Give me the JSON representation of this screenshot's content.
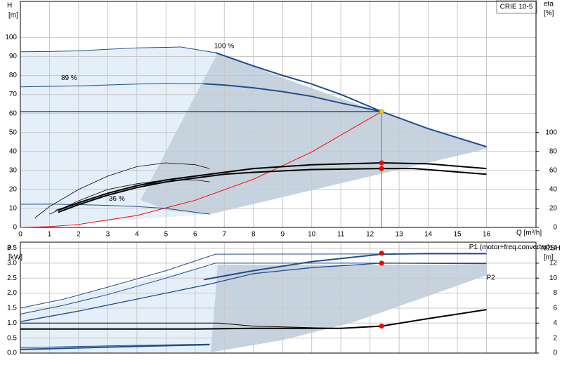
{
  "chart_data": [
    {
      "type": "line",
      "title": "CRIE 10-5",
      "ylabel": "H",
      "yunit": "[m]",
      "y2label": "eta",
      "y2unit": "[%]",
      "xlabel": "Q [m³/h]",
      "xlim": [
        0,
        17.7
      ],
      "xticks": [
        0,
        1,
        2,
        3,
        4,
        5,
        6,
        7,
        8,
        9,
        10,
        11,
        12,
        13,
        14,
        15,
        16
      ],
      "xtick_labels": true,
      "ylim": [
        0,
        119
      ],
      "yticks": [
        0,
        10,
        20,
        30,
        40,
        50,
        60,
        70,
        80,
        90,
        100
      ],
      "y2lim": [
        0,
        238
      ],
      "y2ticks": [
        0,
        20,
        40,
        60,
        80,
        100
      ],
      "grid": true,
      "duty_lines": true,
      "series": [
        {
          "name": "100 %",
          "color": "#1f4e8c",
          "width": 1,
          "x": [
            0,
            1,
            2,
            3,
            4,
            5,
            5.5,
            6.7
          ],
          "values": [
            92.5,
            92.6,
            93,
            93.8,
            94.5,
            94.8,
            95,
            92
          ]
        },
        {
          "color": "#1f4e8c",
          "width": 2,
          "x": [
            6.7,
            8,
            9,
            10,
            11,
            12.4,
            14,
            16
          ],
          "values": [
            92,
            85,
            80,
            75.5,
            70,
            61,
            52,
            42.5
          ]
        },
        {
          "name": "89 %",
          "color": "#1f4e8c",
          "width": 1,
          "x": [
            0,
            2,
            4,
            5,
            6.3
          ],
          "values": [
            74,
            74.5,
            75.5,
            75.8,
            75.6
          ]
        },
        {
          "color": "#1f4e8c",
          "width": 2,
          "x": [
            6.3,
            7,
            8,
            9,
            10,
            11,
            12.4
          ],
          "values": [
            75.6,
            75,
            73.5,
            71.5,
            69,
            65.5,
            61
          ]
        },
        {
          "name": "36 %",
          "color": "#1f4e8c",
          "width": 1,
          "x": [
            0,
            1,
            2,
            3,
            4,
            5,
            6.5
          ],
          "values": [
            12.2,
            12.3,
            12,
            11.6,
            11,
            10,
            7
          ]
        },
        {
          "color": "#ff0000",
          "width": 1,
          "x": [
            0,
            1,
            2,
            4,
            6,
            8,
            10,
            12.4
          ],
          "values": [
            0,
            0.4,
            1.6,
            6.3,
            14.3,
            25.4,
            39.7,
            61
          ]
        },
        {
          "color": "#000000",
          "width": 2,
          "axis": "y2",
          "x": [
            1.3,
            2,
            3,
            4,
            5,
            6,
            7,
            8,
            10,
            12.4,
            14,
            16
          ],
          "values": [
            18,
            26,
            36,
            44,
            50,
            54,
            58,
            62,
            66,
            68,
            67,
            62
          ]
        },
        {
          "color": "#000000",
          "width": 2,
          "axis": "y2",
          "x": [
            1.3,
            2,
            3,
            4,
            5,
            6,
            7,
            8,
            10,
            12.4,
            13.5,
            16
          ],
          "values": [
            16,
            24,
            34,
            42,
            48,
            52,
            56,
            58,
            61,
            62,
            62,
            56
          ]
        },
        {
          "color": "#000000",
          "width": 0.8,
          "axis": "y2",
          "x": [
            0.5,
            1,
            2,
            3,
            4,
            5,
            6,
            6.5
          ],
          "values": [
            10,
            22,
            40,
            54,
            64,
            68,
            66,
            62
          ]
        },
        {
          "color": "#000000",
          "width": 0.8,
          "axis": "y2",
          "x": [
            1,
            2,
            3,
            4,
            5,
            6,
            6.5
          ],
          "values": [
            14,
            28,
            40,
            46,
            50,
            50,
            48
          ]
        },
        {
          "color": "#000000",
          "width": 0.8,
          "axis": "y2",
          "x": [
            1.2,
            2,
            3,
            4,
            5,
            6,
            6.5
          ],
          "values": [
            18,
            26,
            36,
            44,
            48,
            52,
            54
          ]
        }
      ],
      "points": [
        {
          "x": 12.4,
          "y": 61,
          "color": "#f5c400"
        },
        {
          "x": 12.4,
          "y": 68,
          "axis": "y2",
          "color": "#ff0000"
        },
        {
          "x": 12.4,
          "y": 62,
          "axis": "y2",
          "color": "#ff0000"
        }
      ]
    },
    {
      "type": "line",
      "ylabel": "P",
      "yunit": "[kW]",
      "y2label": "NPSH",
      "y2unit": "[m]",
      "xlim": [
        0,
        17.7
      ],
      "xticks": [
        0,
        1,
        2,
        3,
        4,
        5,
        6,
        7,
        8,
        9,
        10,
        11,
        12,
        13,
        14,
        15,
        16
      ],
      "xtick_labels": false,
      "ylim": [
        0,
        3.7
      ],
      "yticks": [
        {
          "value": 0,
          "label": "0.0"
        },
        0.5,
        {
          "value": 1,
          "label": "1.0"
        },
        1.5,
        {
          "value": 2,
          "label": "2.0"
        },
        2.5,
        {
          "value": 3,
          "label": "3.0"
        },
        3.5
      ],
      "y2lim": [
        0,
        14.8
      ],
      "y2ticks": [
        0,
        2,
        4,
        6,
        8,
        10,
        12,
        14
      ],
      "grid": true,
      "duty_lines": false,
      "series": [
        {
          "color": "#1f4e8c",
          "width": 1,
          "x": [
            0,
            1.5,
            3,
            5,
            6.7,
            16
          ],
          "values": [
            1.5,
            1.8,
            2.2,
            2.75,
            3.3,
            3.31
          ]
        },
        {
          "name": "P1 (motor+freq.converter)",
          "color": "#1f4e8c",
          "width": 2,
          "x": [
            6.3,
            8,
            10,
            12.4,
            14,
            16
          ],
          "values": [
            2.45,
            2.75,
            3.05,
            3.3,
            3.32,
            3.32
          ]
        },
        {
          "color": "#1f4e8c",
          "width": 1,
          "x": [
            0,
            1.5,
            3,
            5,
            6.7,
            12.4,
            16
          ],
          "values": [
            1.3,
            1.6,
            1.95,
            2.5,
            3.0,
            3.0,
            3.0
          ]
        },
        {
          "name": "P2",
          "color": "#1f4e8c",
          "width": 1.3,
          "x": [
            0,
            2,
            4,
            6.5,
            8,
            10,
            12.4,
            16
          ],
          "values": [
            1.05,
            1.4,
            1.8,
            2.3,
            2.65,
            2.85,
            3.0,
            2.98
          ]
        },
        {
          "color": "#000000",
          "width": 1,
          "x": [
            0,
            6.8,
            8,
            11
          ],
          "values": [
            1.0,
            1.0,
            0.9,
            0.82
          ]
        },
        {
          "color": "#000000",
          "width": 2,
          "axis": "y2",
          "x": [
            0,
            6,
            8,
            11,
            12.4,
            14,
            16
          ],
          "values": [
            3.2,
            3.2,
            3.3,
            3.3,
            3.6,
            4.6,
            5.8
          ]
        },
        {
          "color": "#1f4e8c",
          "width": 2,
          "x": [
            0,
            3,
            6.5
          ],
          "values": [
            0.12,
            0.2,
            0.28
          ]
        },
        {
          "color": "#1f4e8c",
          "width": 1,
          "x": [
            0,
            3,
            6.5
          ],
          "values": [
            0.18,
            0.24,
            0.3
          ]
        }
      ],
      "points": [
        {
          "x": 12.4,
          "y": 3.33,
          "color": "#ff0000"
        },
        {
          "x": 12.4,
          "y": 3.0,
          "color": "#ff0000"
        },
        {
          "x": 12.4,
          "y": 3.6,
          "axis": "y2",
          "color": "#ff0000"
        }
      ]
    }
  ]
}
